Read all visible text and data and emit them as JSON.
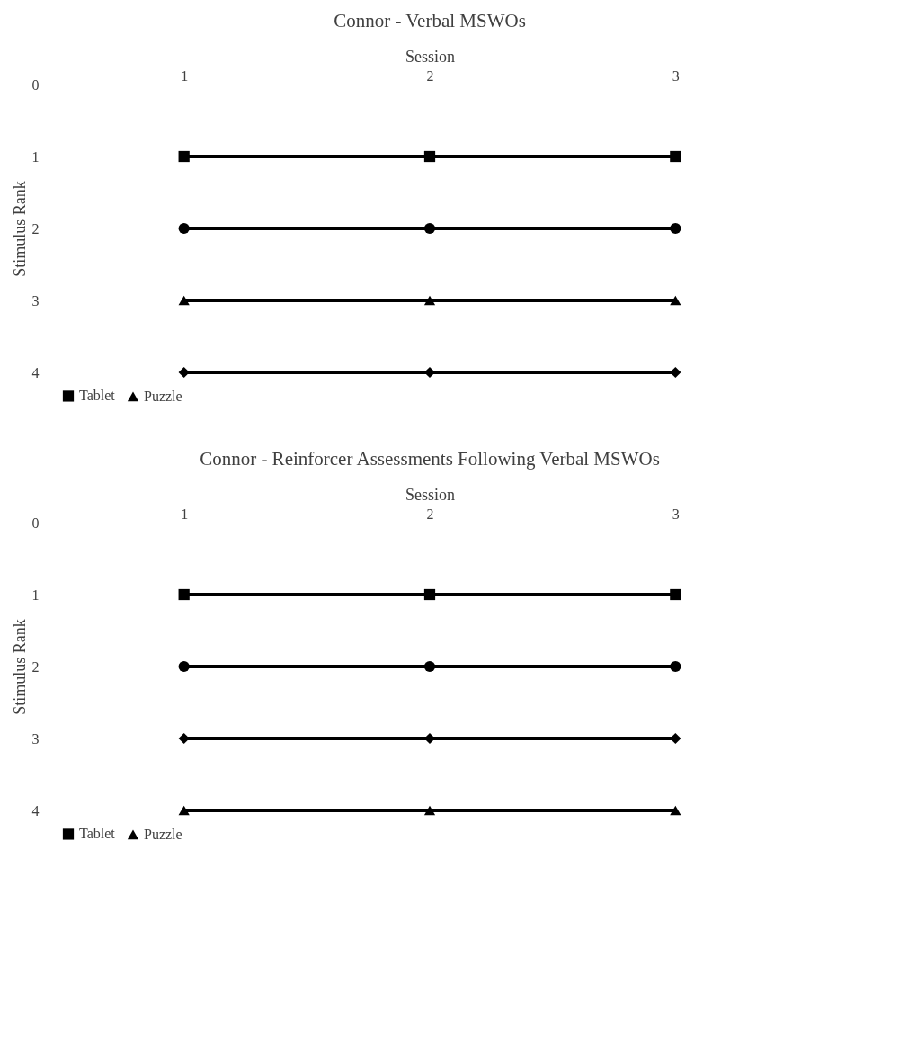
{
  "chart_data": [
    {
      "type": "line",
      "title": "Connor - Verbal MSWOs",
      "xlabel": "Session",
      "ylabel": "Stimulus Rank",
      "categories": [
        "1",
        "2",
        "3"
      ],
      "ylim": [
        4,
        0
      ],
      "yticks": [
        0,
        1,
        2,
        3,
        4
      ],
      "legend": "bottom",
      "series": [
        {
          "color": "#000000",
          "marker": "circle",
          "values": [
            2,
            2,
            2
          ]
        },
        {
          "name": "Tablet",
          "color": "#000000",
          "marker": "square",
          "values": [
            1,
            1,
            1
          ]
        },
        {
          "name": "Puzzle",
          "color": "#000000",
          "marker": "triangle",
          "values": [
            3,
            3,
            3
          ]
        },
        {
          "color": "#000000",
          "marker": "diamond",
          "values": [
            4,
            4,
            4
          ]
        }
      ]
    },
    {
      "type": "line",
      "title": "Connor - Reinforcer Assessments Following Verbal MSWOs",
      "xlabel": "Session",
      "ylabel": "Stimulus Rank",
      "categories": [
        "1",
        "2",
        "3"
      ],
      "ylim": [
        4,
        0
      ],
      "yticks": [
        0,
        1,
        2,
        3,
        4
      ],
      "legend": "bottom",
      "series": [
        {
          "color": "#000000",
          "marker": "circle",
          "values": [
            2,
            2,
            2
          ]
        },
        {
          "name": "Tablet",
          "color": "#000000",
          "marker": "square",
          "values": [
            1,
            1,
            1
          ]
        },
        {
          "name": "Puzzle",
          "color": "#000000",
          "marker": "triangle",
          "values": [
            4,
            4,
            4
          ]
        },
        {
          "color": "#000000",
          "marker": "diamond",
          "values": [
            3,
            3,
            3
          ]
        }
      ]
    }
  ]
}
